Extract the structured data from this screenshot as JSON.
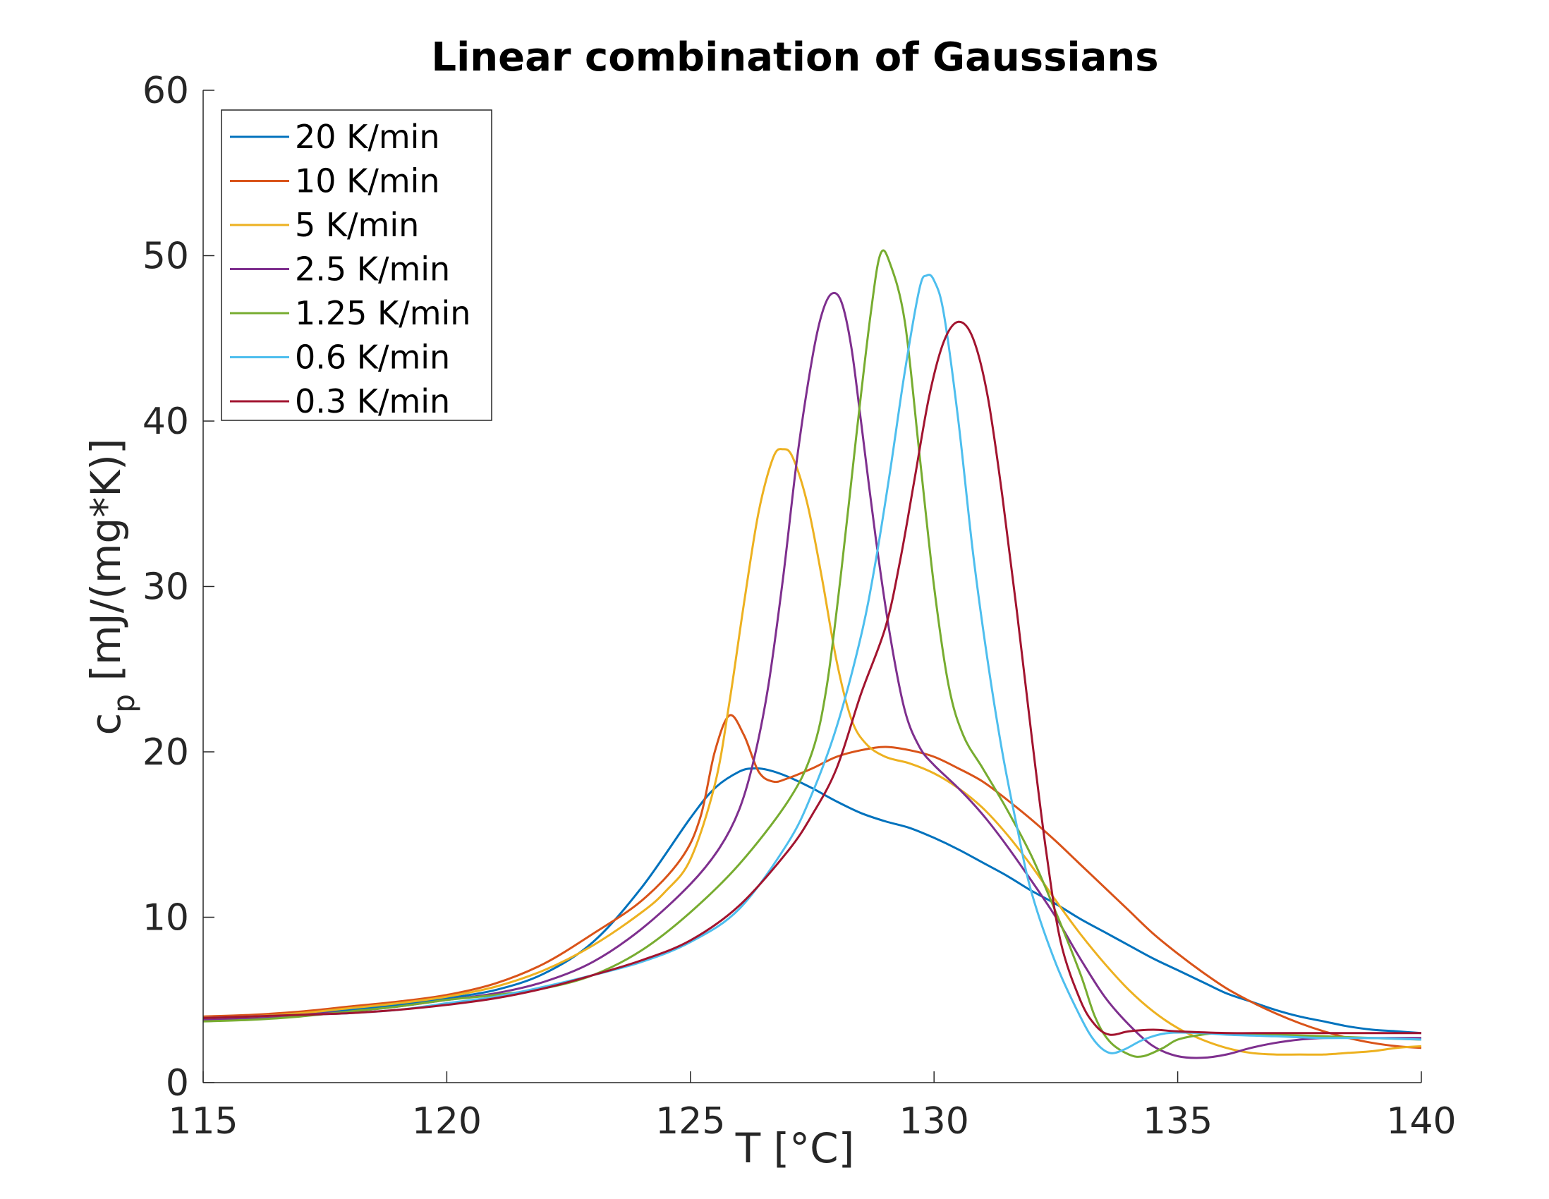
{
  "chart_data": {
    "type": "line",
    "title": "Linear combination of Gaussians",
    "xlabel": "T [°C]",
    "ylabel_main": "c",
    "ylabel_sub": "p",
    "ylabel_rest": " [mJ/(mg*K)]",
    "xlim": [
      115,
      140
    ],
    "ylim": [
      0,
      60
    ],
    "xticks": [
      115,
      120,
      125,
      130,
      135,
      140
    ],
    "yticks": [
      0,
      10,
      20,
      30,
      40,
      50,
      60
    ],
    "grid": false,
    "legend_position": "top-left",
    "series": [
      {
        "name": "20 K/min",
        "color": "#0072BD",
        "points": [
          [
            115,
            3.8
          ],
          [
            116,
            3.9
          ],
          [
            117,
            4.1
          ],
          [
            118,
            4.4
          ],
          [
            119,
            4.7
          ],
          [
            120,
            5.1
          ],
          [
            121,
            5.6
          ],
          [
            122,
            6.6
          ],
          [
            123,
            8.5
          ],
          [
            124,
            11.8
          ],
          [
            125,
            16.0
          ],
          [
            125.5,
            17.8
          ],
          [
            126,
            18.8
          ],
          [
            126.3,
            19.0
          ],
          [
            126.6,
            18.9
          ],
          [
            127,
            18.5
          ],
          [
            127.5,
            17.8
          ],
          [
            128,
            17.0
          ],
          [
            128.5,
            16.3
          ],
          [
            129,
            15.8
          ],
          [
            129.5,
            15.4
          ],
          [
            130,
            14.8
          ],
          [
            130.5,
            14.1
          ],
          [
            131,
            13.3
          ],
          [
            131.5,
            12.5
          ],
          [
            132,
            11.6
          ],
          [
            132.5,
            10.8
          ],
          [
            133,
            9.9
          ],
          [
            133.5,
            9.1
          ],
          [
            134,
            8.3
          ],
          [
            134.5,
            7.5
          ],
          [
            135,
            6.8
          ],
          [
            135.5,
            6.1
          ],
          [
            136,
            5.4
          ],
          [
            136.5,
            4.9
          ],
          [
            137,
            4.4
          ],
          [
            137.5,
            4.0
          ],
          [
            138,
            3.7
          ],
          [
            138.5,
            3.4
          ],
          [
            139,
            3.2
          ],
          [
            139.5,
            3.1
          ],
          [
            140,
            3.0
          ]
        ]
      },
      {
        "name": "10 K/min",
        "color": "#D95319",
        "points": [
          [
            115,
            4.0
          ],
          [
            116,
            4.1
          ],
          [
            117,
            4.3
          ],
          [
            118,
            4.6
          ],
          [
            119,
            4.9
          ],
          [
            120,
            5.3
          ],
          [
            121,
            6.0
          ],
          [
            122,
            7.2
          ],
          [
            123,
            9.0
          ],
          [
            124,
            11.0
          ],
          [
            124.8,
            13.5
          ],
          [
            125.2,
            16.0
          ],
          [
            125.5,
            20.0
          ],
          [
            125.8,
            22.2
          ],
          [
            126.1,
            21.0
          ],
          [
            126.4,
            18.8
          ],
          [
            126.7,
            18.2
          ],
          [
            127,
            18.4
          ],
          [
            127.5,
            19.0
          ],
          [
            128,
            19.7
          ],
          [
            128.5,
            20.1
          ],
          [
            129,
            20.3
          ],
          [
            129.5,
            20.1
          ],
          [
            130,
            19.7
          ],
          [
            130.5,
            19.0
          ],
          [
            131,
            18.2
          ],
          [
            131.5,
            17.1
          ],
          [
            132,
            15.9
          ],
          [
            132.5,
            14.6
          ],
          [
            133,
            13.2
          ],
          [
            133.5,
            11.8
          ],
          [
            134,
            10.4
          ],
          [
            134.5,
            9.0
          ],
          [
            135,
            7.8
          ],
          [
            135.5,
            6.7
          ],
          [
            136,
            5.7
          ],
          [
            136.5,
            4.9
          ],
          [
            137,
            4.2
          ],
          [
            137.5,
            3.6
          ],
          [
            138,
            3.1
          ],
          [
            138.5,
            2.7
          ],
          [
            139,
            2.4
          ],
          [
            139.5,
            2.2
          ],
          [
            140,
            2.1
          ]
        ]
      },
      {
        "name": "5 K/min",
        "color": "#EDB120",
        "points": [
          [
            115,
            3.9
          ],
          [
            116,
            4.0
          ],
          [
            117,
            4.2
          ],
          [
            118,
            4.5
          ],
          [
            119,
            4.8
          ],
          [
            120,
            5.2
          ],
          [
            121,
            5.8
          ],
          [
            122,
            6.8
          ],
          [
            123,
            8.3
          ],
          [
            124,
            10.3
          ],
          [
            124.5,
            11.6
          ],
          [
            125,
            13.5
          ],
          [
            125.5,
            18.0
          ],
          [
            125.8,
            23.0
          ],
          [
            126.1,
            29.0
          ],
          [
            126.4,
            34.5
          ],
          [
            126.7,
            37.8
          ],
          [
            126.9,
            38.3
          ],
          [
            127.1,
            37.8
          ],
          [
            127.4,
            35.0
          ],
          [
            127.7,
            30.5
          ],
          [
            128,
            25.5
          ],
          [
            128.3,
            22.0
          ],
          [
            128.6,
            20.5
          ],
          [
            129,
            19.7
          ],
          [
            129.5,
            19.3
          ],
          [
            130,
            18.7
          ],
          [
            130.5,
            17.8
          ],
          [
            131,
            16.6
          ],
          [
            131.5,
            15.0
          ],
          [
            132,
            13.1
          ],
          [
            132.5,
            11.0
          ],
          [
            133,
            9.0
          ],
          [
            133.5,
            7.2
          ],
          [
            134,
            5.6
          ],
          [
            134.5,
            4.3
          ],
          [
            135,
            3.3
          ],
          [
            135.5,
            2.6
          ],
          [
            136,
            2.1
          ],
          [
            136.5,
            1.8
          ],
          [
            137,
            1.7
          ],
          [
            137.5,
            1.7
          ],
          [
            138,
            1.7
          ],
          [
            138.5,
            1.8
          ],
          [
            139,
            1.9
          ],
          [
            139.5,
            2.1
          ],
          [
            140,
            2.2
          ]
        ]
      },
      {
        "name": "2.5 K/min",
        "color": "#7E2F8E",
        "points": [
          [
            115,
            3.8
          ],
          [
            116,
            3.9
          ],
          [
            117,
            4.1
          ],
          [
            118,
            4.3
          ],
          [
            119,
            4.6
          ],
          [
            120,
            5.0
          ],
          [
            121,
            5.4
          ],
          [
            122,
            6.1
          ],
          [
            123,
            7.3
          ],
          [
            124,
            9.3
          ],
          [
            125,
            12.0
          ],
          [
            125.6,
            14.2
          ],
          [
            126,
            16.5
          ],
          [
            126.3,
            19.5
          ],
          [
            126.6,
            24.0
          ],
          [
            126.9,
            30.5
          ],
          [
            127.2,
            38.0
          ],
          [
            127.5,
            43.8
          ],
          [
            127.7,
            46.5
          ],
          [
            127.9,
            47.7
          ],
          [
            128.1,
            47.2
          ],
          [
            128.3,
            44.5
          ],
          [
            128.5,
            40.0
          ],
          [
            128.8,
            33.0
          ],
          [
            129.1,
            27.0
          ],
          [
            129.4,
            22.5
          ],
          [
            129.7,
            20.3
          ],
          [
            130,
            19.2
          ],
          [
            130.5,
            17.8
          ],
          [
            131,
            16.2
          ],
          [
            131.5,
            14.3
          ],
          [
            132,
            12.2
          ],
          [
            132.5,
            10.0
          ],
          [
            133,
            7.5
          ],
          [
            133.5,
            5.2
          ],
          [
            134,
            3.5
          ],
          [
            134.5,
            2.2
          ],
          [
            135,
            1.6
          ],
          [
            135.5,
            1.5
          ],
          [
            136,
            1.7
          ],
          [
            136.5,
            2.1
          ],
          [
            137,
            2.4
          ],
          [
            137.5,
            2.6
          ],
          [
            138,
            2.7
          ],
          [
            139,
            2.7
          ],
          [
            140,
            2.7
          ]
        ]
      },
      {
        "name": "1.25 K/min",
        "color": "#77AC30",
        "points": [
          [
            115,
            3.7
          ],
          [
            116,
            3.8
          ],
          [
            117,
            4.0
          ],
          [
            118,
            4.3
          ],
          [
            119,
            4.6
          ],
          [
            120,
            5.0
          ],
          [
            121,
            5.3
          ],
          [
            122,
            5.7
          ],
          [
            123,
            6.5
          ],
          [
            124,
            8.0
          ],
          [
            125,
            10.3
          ],
          [
            126,
            13.2
          ],
          [
            127,
            17.0
          ],
          [
            127.5,
            20.0
          ],
          [
            127.8,
            24.0
          ],
          [
            128.1,
            31.0
          ],
          [
            128.4,
            39.0
          ],
          [
            128.7,
            46.5
          ],
          [
            128.9,
            50.1
          ],
          [
            129.1,
            49.5
          ],
          [
            129.4,
            46.0
          ],
          [
            129.7,
            38.0
          ],
          [
            130,
            30.0
          ],
          [
            130.3,
            24.0
          ],
          [
            130.6,
            21.0
          ],
          [
            131,
            19.0
          ],
          [
            131.5,
            16.5
          ],
          [
            132,
            13.7
          ],
          [
            132.5,
            10.3
          ],
          [
            133,
            6.6
          ],
          [
            133.3,
            4.0
          ],
          [
            133.6,
            2.5
          ],
          [
            134,
            1.7
          ],
          [
            134.3,
            1.6
          ],
          [
            134.7,
            2.1
          ],
          [
            135,
            2.6
          ],
          [
            135.5,
            2.9
          ],
          [
            136,
            3.0
          ],
          [
            137,
            2.9
          ],
          [
            138,
            2.8
          ],
          [
            139,
            2.7
          ],
          [
            140,
            2.6
          ]
        ]
      },
      {
        "name": "0.6 K/min",
        "color": "#4DBEEE",
        "points": [
          [
            115,
            3.9
          ],
          [
            116,
            4.0
          ],
          [
            117,
            4.1
          ],
          [
            118,
            4.2
          ],
          [
            119,
            4.4
          ],
          [
            120,
            4.8
          ],
          [
            121,
            5.2
          ],
          [
            122,
            5.8
          ],
          [
            123,
            6.5
          ],
          [
            124,
            7.3
          ],
          [
            125,
            8.5
          ],
          [
            126,
            10.5
          ],
          [
            127,
            14.5
          ],
          [
            127.5,
            17.5
          ],
          [
            128,
            21.5
          ],
          [
            128.5,
            27.0
          ],
          [
            128.8,
            31.5
          ],
          [
            129.1,
            37.0
          ],
          [
            129.4,
            43.0
          ],
          [
            129.7,
            48.0
          ],
          [
            129.85,
            48.8
          ],
          [
            130,
            48.5
          ],
          [
            130.2,
            46.5
          ],
          [
            130.5,
            40.0
          ],
          [
            130.8,
            32.0
          ],
          [
            131.1,
            25.5
          ],
          [
            131.4,
            20.0
          ],
          [
            131.7,
            15.5
          ],
          [
            132,
            11.5
          ],
          [
            132.5,
            7.2
          ],
          [
            133,
            4.0
          ],
          [
            133.3,
            2.5
          ],
          [
            133.6,
            1.8
          ],
          [
            133.9,
            2.0
          ],
          [
            134.3,
            2.6
          ],
          [
            134.8,
            3.0
          ],
          [
            135.5,
            3.0
          ],
          [
            136,
            2.9
          ],
          [
            137,
            2.8
          ],
          [
            138,
            2.7
          ],
          [
            139,
            2.7
          ],
          [
            140,
            2.6
          ]
        ]
      },
      {
        "name": "0.3 K/min",
        "color": "#A2142F",
        "points": [
          [
            115,
            3.9
          ],
          [
            116,
            4.0
          ],
          [
            117,
            4.1
          ],
          [
            118,
            4.2
          ],
          [
            119,
            4.4
          ],
          [
            120,
            4.7
          ],
          [
            121,
            5.1
          ],
          [
            122,
            5.7
          ],
          [
            123,
            6.5
          ],
          [
            124,
            7.4
          ],
          [
            125,
            8.6
          ],
          [
            126,
            10.7
          ],
          [
            127,
            14.0
          ],
          [
            127.5,
            16.2
          ],
          [
            128,
            19.0
          ],
          [
            128.5,
            23.5
          ],
          [
            129,
            27.5
          ],
          [
            129.3,
            31.5
          ],
          [
            129.6,
            36.5
          ],
          [
            129.9,
            41.5
          ],
          [
            130.2,
            44.8
          ],
          [
            130.5,
            46.0
          ],
          [
            130.8,
            45.0
          ],
          [
            131.1,
            41.5
          ],
          [
            131.4,
            35.5
          ],
          [
            131.7,
            28.5
          ],
          [
            132,
            21.0
          ],
          [
            132.3,
            14.0
          ],
          [
            132.6,
            8.5
          ],
          [
            133,
            5.0
          ],
          [
            133.3,
            3.5
          ],
          [
            133.6,
            2.9
          ],
          [
            134,
            3.1
          ],
          [
            134.5,
            3.2
          ],
          [
            135,
            3.1
          ],
          [
            136,
            3.0
          ],
          [
            137,
            3.0
          ],
          [
            138,
            3.0
          ],
          [
            139,
            3.0
          ],
          [
            140,
            3.0
          ]
        ]
      }
    ]
  }
}
